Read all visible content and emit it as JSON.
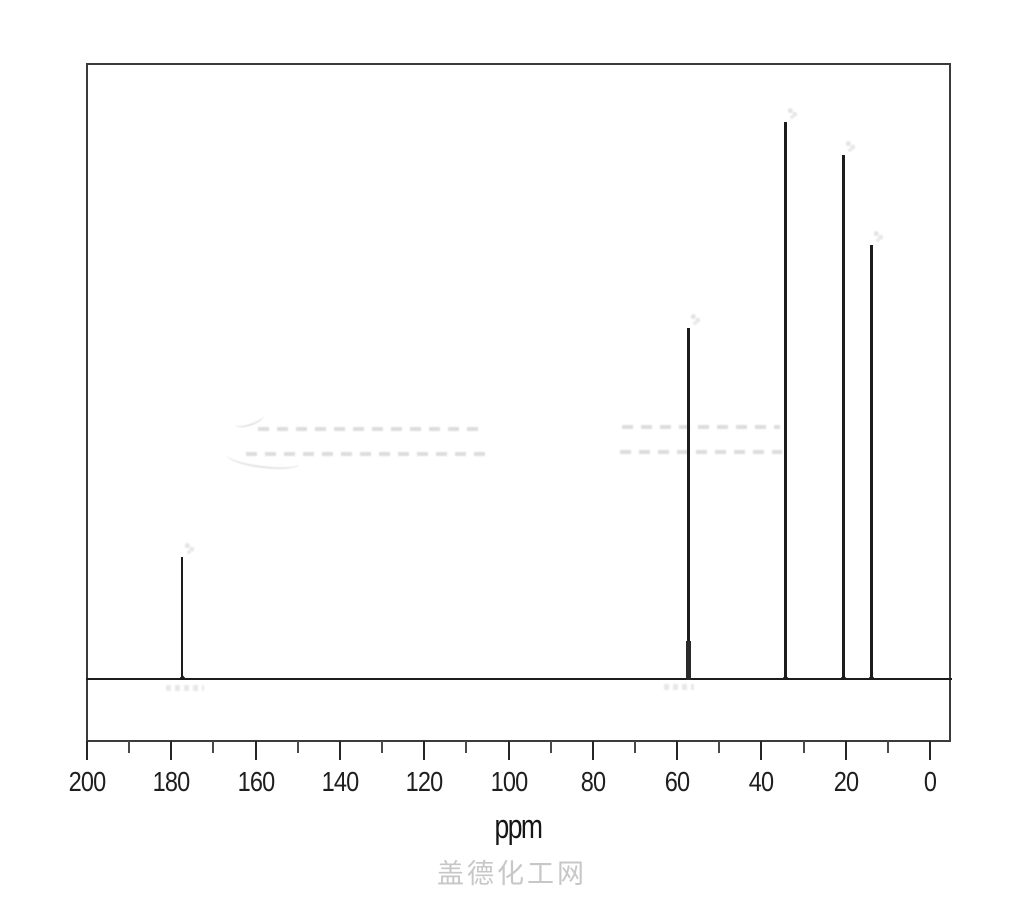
{
  "chart_data": {
    "type": "line",
    "subtype": "nmr-spectrum",
    "xlabel": "ppm",
    "x_axis": {
      "min": 0,
      "max": 200,
      "direction": "reversed",
      "major_tick_step": 20,
      "minor_tick_step": 10
    },
    "x_major_ticks": [
      200,
      180,
      160,
      140,
      120,
      100,
      80,
      60,
      40,
      20,
      0
    ],
    "x_minor_ticks": [
      190,
      170,
      150,
      130,
      110,
      90,
      70,
      50,
      30,
      10
    ],
    "grid": false,
    "legend": false,
    "line_color": "#1c1c1c",
    "baseline_intensity": 0,
    "peaks": [
      {
        "ppm": 177.5,
        "intensity": 0.22
      },
      {
        "ppm": 57.3,
        "intensity": 0.63,
        "shoulder_intensity": 0.07
      },
      {
        "ppm": 34.4,
        "intensity": 1.0
      },
      {
        "ppm": 20.6,
        "intensity": 0.94
      },
      {
        "ppm": 14.0,
        "intensity": 0.78
      }
    ]
  },
  "watermark": {
    "text": "盖德化工网",
    "color": "#c7c7c7"
  }
}
